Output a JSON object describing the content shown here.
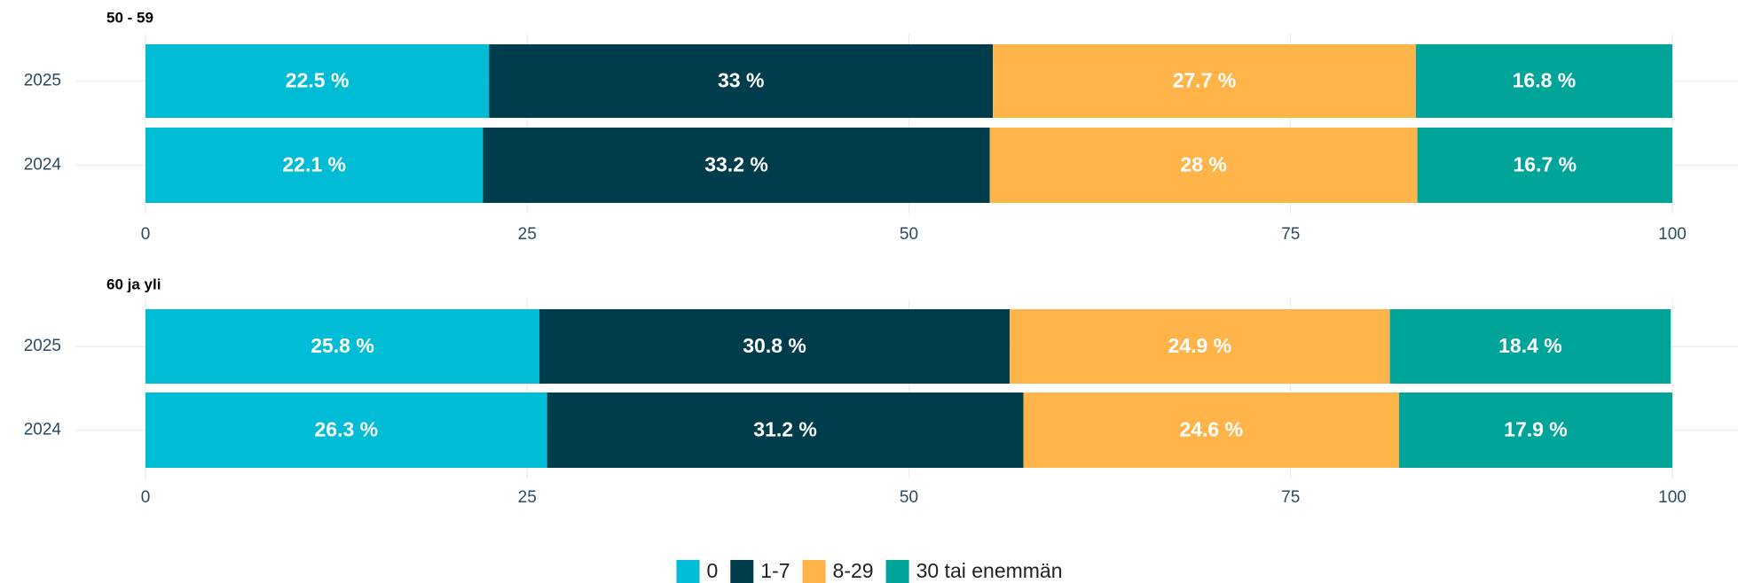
{
  "chart_data": [
    {
      "type": "stacked-bar-horizontal",
      "title": "50 - 59",
      "categories": [
        "2025",
        "2024"
      ],
      "series": [
        {
          "name": "0",
          "color": "#00bcd4",
          "values": [
            22.5,
            22.1
          ],
          "value_labels": [
            "22.5 %",
            "22.1 %"
          ]
        },
        {
          "name": "1-7",
          "color": "#003d4c",
          "values": [
            33,
            33.2
          ],
          "value_labels": [
            "33 %",
            "33.2 %"
          ]
        },
        {
          "name": "8-29",
          "color": "#ffb44a",
          "values": [
            27.7,
            28
          ],
          "value_labels": [
            "27.7 %",
            "28 %"
          ]
        },
        {
          "name": "30 tai enemmän",
          "color": "#00a499",
          "values": [
            16.8,
            16.7
          ],
          "value_labels": [
            "16.8 %",
            "16.7 %"
          ]
        }
      ],
      "xlim": [
        0,
        100
      ],
      "xticks": [
        0,
        25,
        50,
        75,
        100
      ],
      "grid": true,
      "legend": "bottom"
    },
    {
      "type": "stacked-bar-horizontal",
      "title": "60 ja yli",
      "categories": [
        "2025",
        "2024"
      ],
      "series": [
        {
          "color": "#00bcd4",
          "values": [
            25.8,
            26.3
          ],
          "value_labels": [
            "25.8 %",
            "26.3 %"
          ]
        },
        {
          "color": "#003d4c",
          "values": [
            30.8,
            31.2
          ],
          "value_labels": [
            "30.8 %",
            "31.2 %"
          ]
        },
        {
          "color": "#ffb44a",
          "values": [
            24.9,
            24.6
          ],
          "value_labels": [
            "24.9 %",
            "24.6 %"
          ]
        },
        {
          "color": "#00a499",
          "values": [
            18.4,
            17.9
          ],
          "value_labels": [
            "18.4 %",
            "17.9 %"
          ]
        }
      ],
      "xlim": [
        0,
        100
      ],
      "xticks": [
        0,
        25,
        50,
        75,
        100
      ],
      "grid": true
    }
  ]
}
